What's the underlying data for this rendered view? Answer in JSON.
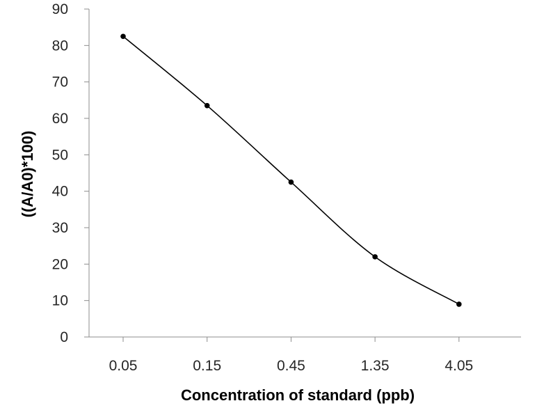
{
  "chart_data": {
    "type": "line",
    "title": "",
    "xlabel": "Concentration of standard (ppb)",
    "ylabel": "((A/A0)*100)",
    "categories": [
      "0.05",
      "0.15",
      "0.45",
      "1.35",
      "4.05"
    ],
    "series": [
      {
        "values": [
          82.5,
          63.5,
          42.5,
          22,
          9
        ]
      }
    ],
    "ylim": [
      0,
      90
    ],
    "yticks": [
      0,
      10,
      20,
      30,
      40,
      50,
      60,
      70,
      80,
      90
    ],
    "grid": false,
    "legend": "none",
    "smooth": true,
    "line_color": "#000000",
    "marker": "circle"
  }
}
